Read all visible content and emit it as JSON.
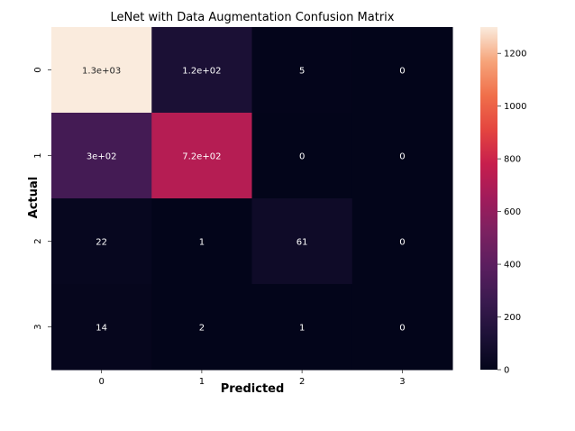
{
  "chart_data": {
    "type": "heatmap",
    "title": "LeNet with Data Augmentation Confusion Matrix",
    "xlabel": "Predicted",
    "ylabel": "Actual",
    "x_categories": [
      "0",
      "1",
      "2",
      "3"
    ],
    "y_categories": [
      "0",
      "1",
      "2",
      "3"
    ],
    "values": [
      [
        1300,
        120,
        5,
        0
      ],
      [
        300,
        720,
        0,
        0
      ],
      [
        22,
        1,
        61,
        0
      ],
      [
        14,
        2,
        1,
        0
      ]
    ],
    "annotations": [
      [
        "1.3e+03",
        "1.2e+02",
        "5",
        "0"
      ],
      [
        "3e+02",
        "7.2e+02",
        "0",
        "0"
      ],
      [
        "22",
        "1",
        "61",
        "0"
      ],
      [
        "14",
        "2",
        "1",
        "0"
      ]
    ],
    "colorbar": {
      "min": 0,
      "max": 1300,
      "ticks": [
        0,
        200,
        400,
        600,
        800,
        1000,
        1200
      ]
    },
    "colormap": "rocket",
    "grid": false,
    "legend": "colorbar-right"
  }
}
